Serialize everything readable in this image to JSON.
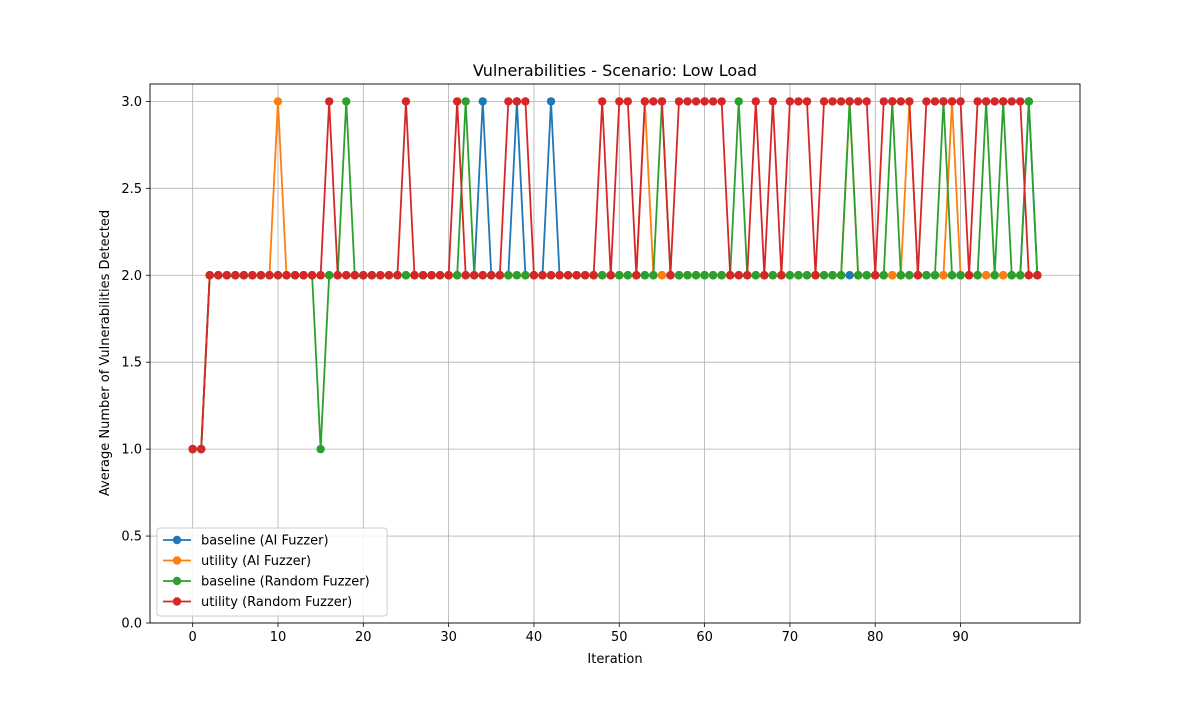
{
  "chart_data": {
    "type": "line",
    "title": "Vulnerabilities - Scenario: Low Load",
    "xlabel": "Iteration",
    "ylabel": "Average Number of Vulnerabilities Detected",
    "xlim": [
      -5,
      104
    ],
    "ylim": [
      0,
      3.1
    ],
    "xticks": [
      0,
      10,
      20,
      30,
      40,
      50,
      60,
      70,
      80,
      90
    ],
    "yticks": [
      0.0,
      0.5,
      1.0,
      1.5,
      2.0,
      2.5,
      3.0
    ],
    "grid": true,
    "legend_position": "lower-left",
    "series": [
      {
        "name": "baseline (AI Fuzzer)",
        "color": "#1f77b4",
        "x": [
          0,
          1,
          2,
          3,
          4,
          5,
          6,
          7,
          8,
          9,
          10,
          11,
          12,
          13,
          14,
          15,
          16,
          17,
          18,
          19,
          20,
          21,
          22,
          23,
          24,
          25,
          26,
          27,
          28,
          29,
          30,
          31,
          32,
          33,
          34,
          35,
          36,
          37,
          38,
          39,
          40,
          41,
          42,
          43,
          44,
          45,
          46,
          47,
          48,
          49,
          50,
          51,
          52,
          53,
          54,
          55,
          56,
          57,
          58,
          59,
          60,
          61,
          62,
          63,
          64,
          65,
          66,
          67,
          68,
          69,
          70,
          71,
          72,
          73,
          74,
          75,
          76,
          77,
          78,
          79,
          80,
          81,
          82,
          83,
          84,
          85,
          86,
          87,
          88,
          89,
          90,
          91,
          92,
          93,
          94,
          95,
          96,
          97,
          98,
          99
        ],
        "values": [
          1,
          1,
          2,
          2,
          2,
          2,
          2,
          2,
          2,
          2,
          2,
          2,
          2,
          2,
          2,
          2,
          2,
          2,
          2,
          2,
          2,
          2,
          2,
          2,
          2,
          2,
          2,
          2,
          2,
          2,
          2,
          2,
          2,
          2,
          3,
          2,
          2,
          2,
          3,
          2,
          2,
          2,
          3,
          2,
          2,
          2,
          2,
          2,
          2,
          2,
          2,
          2,
          2,
          2,
          2,
          2,
          2,
          2,
          2,
          2,
          2,
          2,
          2,
          2,
          2,
          2,
          2,
          2,
          2,
          2,
          2,
          2,
          2,
          2,
          2,
          2,
          2,
          2,
          2,
          2,
          2,
          2,
          2,
          2,
          2,
          2,
          2,
          2,
          2,
          2,
          2,
          2,
          2,
          2,
          2,
          2,
          2,
          2,
          3,
          2
        ]
      },
      {
        "name": "utility (AI Fuzzer)",
        "color": "#ff7f0e",
        "x": [
          0,
          1,
          2,
          3,
          4,
          5,
          6,
          7,
          8,
          9,
          10,
          11,
          12,
          13,
          14,
          15,
          16,
          17,
          18,
          19,
          20,
          21,
          22,
          23,
          24,
          25,
          26,
          27,
          28,
          29,
          30,
          31,
          32,
          33,
          34,
          35,
          36,
          37,
          38,
          39,
          40,
          41,
          42,
          43,
          44,
          45,
          46,
          47,
          48,
          49,
          50,
          51,
          52,
          53,
          54,
          55,
          56,
          57,
          58,
          59,
          60,
          61,
          62,
          63,
          64,
          65,
          66,
          67,
          68,
          69,
          70,
          71,
          72,
          73,
          74,
          75,
          76,
          77,
          78,
          79,
          80,
          81,
          82,
          83,
          84,
          85,
          86,
          87,
          88,
          89,
          90,
          91,
          92,
          93,
          94,
          95,
          96,
          97,
          98,
          99
        ],
        "values": [
          1,
          1,
          2,
          2,
          2,
          2,
          2,
          2,
          2,
          2,
          3,
          2,
          2,
          2,
          2,
          2,
          2,
          2,
          2,
          2,
          2,
          2,
          2,
          2,
          2,
          2,
          2,
          2,
          2,
          2,
          2,
          2,
          2,
          2,
          2,
          2,
          2,
          2,
          2,
          2,
          2,
          2,
          2,
          2,
          2,
          2,
          2,
          2,
          2,
          2,
          2,
          2,
          2,
          3,
          2,
          2,
          2,
          2,
          2,
          2,
          2,
          2,
          2,
          2,
          2,
          2,
          2,
          2,
          2,
          2,
          2,
          2,
          2,
          2,
          2,
          2,
          2,
          3,
          2,
          2,
          2,
          2,
          2,
          2,
          3,
          2,
          2,
          2,
          2,
          3,
          2,
          2,
          2,
          2,
          2,
          2,
          2,
          2,
          2,
          2
        ]
      },
      {
        "name": "baseline (Random Fuzzer)",
        "color": "#2ca02c",
        "x": [
          0,
          1,
          2,
          3,
          4,
          5,
          6,
          7,
          8,
          9,
          10,
          11,
          12,
          13,
          14,
          15,
          16,
          17,
          18,
          19,
          20,
          21,
          22,
          23,
          24,
          25,
          26,
          27,
          28,
          29,
          30,
          31,
          32,
          33,
          34,
          35,
          36,
          37,
          38,
          39,
          40,
          41,
          42,
          43,
          44,
          45,
          46,
          47,
          48,
          49,
          50,
          51,
          52,
          53,
          54,
          55,
          56,
          57,
          58,
          59,
          60,
          61,
          62,
          63,
          64,
          65,
          66,
          67,
          68,
          69,
          70,
          71,
          72,
          73,
          74,
          75,
          76,
          77,
          78,
          79,
          80,
          81,
          82,
          83,
          84,
          85,
          86,
          87,
          88,
          89,
          90,
          91,
          92,
          93,
          94,
          95,
          96,
          97,
          98,
          99
        ],
        "values": [
          1,
          1,
          2,
          2,
          2,
          2,
          2,
          2,
          2,
          2,
          2,
          2,
          2,
          2,
          2,
          1,
          2,
          2,
          3,
          2,
          2,
          2,
          2,
          2,
          2,
          2,
          2,
          2,
          2,
          2,
          2,
          2,
          3,
          2,
          2,
          2,
          2,
          2,
          2,
          2,
          2,
          2,
          2,
          2,
          2,
          2,
          2,
          2,
          2,
          2,
          2,
          2,
          2,
          2,
          2,
          3,
          2,
          2,
          2,
          2,
          2,
          2,
          2,
          2,
          3,
          2,
          2,
          2,
          2,
          2,
          2,
          2,
          2,
          2,
          2,
          2,
          2,
          3,
          2,
          2,
          2,
          2,
          3,
          2,
          2,
          2,
          2,
          2,
          3,
          2,
          2,
          2,
          2,
          3,
          2,
          3,
          2,
          2,
          3,
          2
        ]
      },
      {
        "name": "utility (Random Fuzzer)",
        "color": "#d62728",
        "x": [
          0,
          1,
          2,
          3,
          4,
          5,
          6,
          7,
          8,
          9,
          10,
          11,
          12,
          13,
          14,
          15,
          16,
          17,
          18,
          19,
          20,
          21,
          22,
          23,
          24,
          25,
          26,
          27,
          28,
          29,
          30,
          31,
          32,
          33,
          34,
          35,
          36,
          37,
          38,
          39,
          40,
          41,
          42,
          43,
          44,
          45,
          46,
          47,
          48,
          49,
          50,
          51,
          52,
          53,
          54,
          55,
          56,
          57,
          58,
          59,
          60,
          61,
          62,
          63,
          64,
          65,
          66,
          67,
          68,
          69,
          70,
          71,
          72,
          73,
          74,
          75,
          76,
          77,
          78,
          79,
          80,
          81,
          82,
          83,
          84,
          85,
          86,
          87,
          88,
          89,
          90,
          91,
          92,
          93,
          94,
          95,
          96,
          97,
          98,
          99
        ],
        "values": [
          1,
          1,
          2,
          2,
          2,
          2,
          2,
          2,
          2,
          2,
          2,
          2,
          2,
          2,
          2,
          2,
          3,
          2,
          2,
          2,
          2,
          2,
          2,
          2,
          2,
          3,
          2,
          2,
          2,
          2,
          2,
          3,
          2,
          2,
          2,
          2,
          2,
          3,
          3,
          3,
          2,
          2,
          2,
          2,
          2,
          2,
          2,
          2,
          3,
          2,
          3,
          3,
          2,
          3,
          3,
          3,
          2,
          3,
          3,
          3,
          3,
          3,
          3,
          2,
          2,
          2,
          3,
          2,
          3,
          2,
          3,
          3,
          3,
          2,
          3,
          3,
          3,
          3,
          3,
          3,
          2,
          3,
          3,
          3,
          3,
          2,
          3,
          3,
          3,
          3,
          3,
          2,
          3,
          3,
          3,
          3,
          3,
          3,
          2,
          2
        ]
      }
    ]
  }
}
